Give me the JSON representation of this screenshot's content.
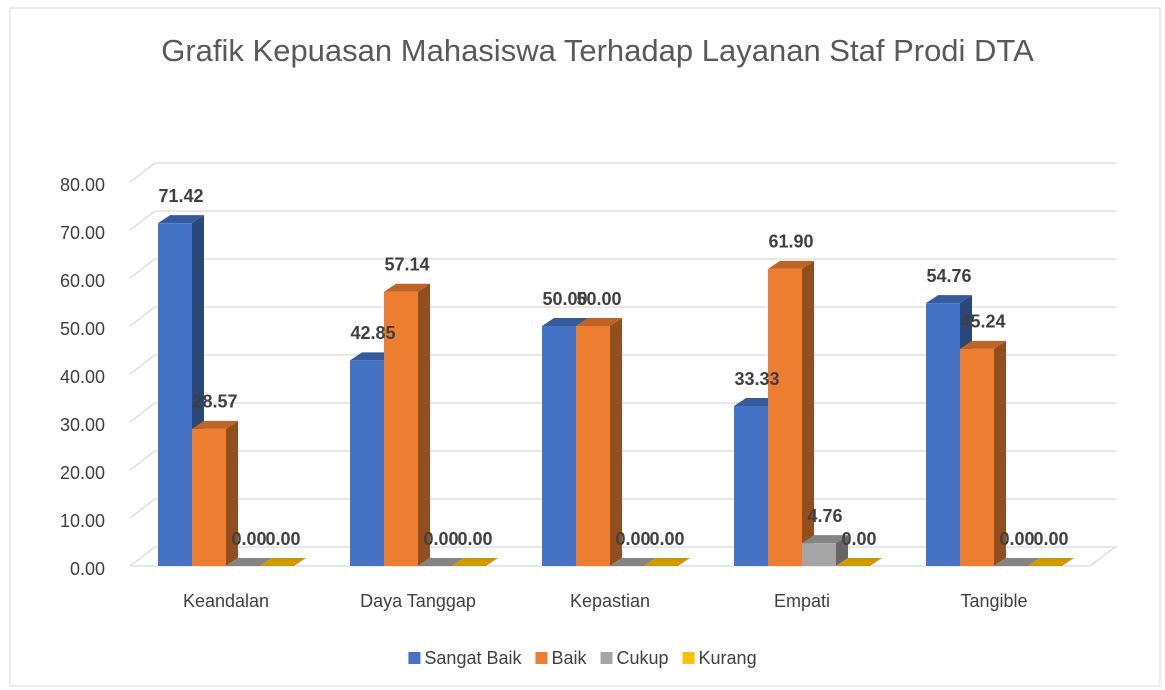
{
  "chart_data": {
    "type": "bar3d",
    "title": "Grafik Kepuasan Mahasiswa Terhadap Layanan Staf Prodi DTA",
    "categories": [
      "Keandalan",
      "Daya Tanggap",
      "Kepastian",
      "Empati",
      "Tangible"
    ],
    "series": [
      {
        "name": "Sangat Baik",
        "color": "#4472c4",
        "values": [
          71.42,
          42.85,
          50.0,
          33.33,
          54.76
        ],
        "value_labels": [
          "71.42",
          "42.85",
          "50.00",
          "33.33",
          "54.76"
        ]
      },
      {
        "name": "Baik",
        "color": "#ed7d31",
        "values": [
          28.57,
          57.14,
          50.0,
          61.9,
          45.24
        ],
        "value_labels": [
          "28.57",
          "57.14",
          "50.00",
          "61.90",
          "45.24"
        ]
      },
      {
        "name": "Cukup",
        "color": "#a5a5a5",
        "values": [
          0,
          0,
          0,
          4.76,
          0
        ],
        "value_labels": [
          "0.00",
          "0.00",
          "0.00",
          "4.76",
          "0.00"
        ]
      },
      {
        "name": "Kurang",
        "color": "#ffc000",
        "values": [
          0,
          0,
          0,
          0,
          0
        ],
        "value_labels": [
          "0.00",
          "0.00",
          "0.00",
          "0.00",
          "0.00"
        ]
      }
    ],
    "ylim": [
      0,
      80
    ],
    "yticks": [
      {
        "value": 0,
        "label": "0.00"
      },
      {
        "value": 10,
        "label": "10.00"
      },
      {
        "value": 20,
        "label": "20.00"
      },
      {
        "value": 30,
        "label": "30.00"
      },
      {
        "value": 40,
        "label": "40.00"
      },
      {
        "value": 50,
        "label": "50.00"
      },
      {
        "value": 60,
        "label": "60.00"
      },
      {
        "value": 70,
        "label": "70.00"
      },
      {
        "value": 80,
        "label": "80.00"
      }
    ],
    "grid": true,
    "legend": "bottom"
  }
}
